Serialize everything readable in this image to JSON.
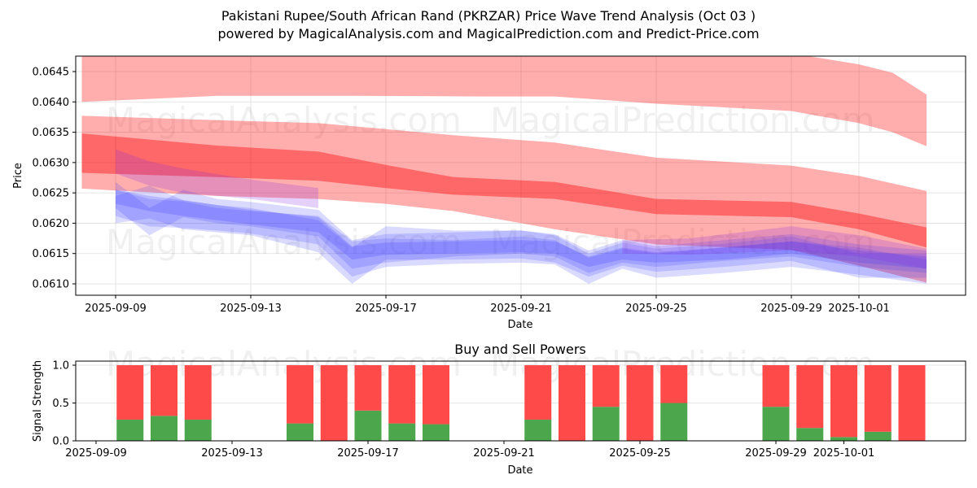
{
  "title_line1": "Pakistani Rupee/South African Rand (PKRZAR) Price Wave Trend Analysis (Oct 03 )",
  "title_line2": "powered by MagicalAnalysis.com and MagicalPrediction.com and Predict-Price.com",
  "watermarks": [
    "MagicalAnalysis.com",
    "MagicalPrediction.com"
  ],
  "colors": {
    "red_band": "#ff0000",
    "blue_band": "#3333ff",
    "purple_band": "#8a2be2",
    "buy": "#4ca64c",
    "sell": "#ff4a4a",
    "grid": "#dddddd"
  },
  "chart_data": [
    {
      "type": "area",
      "title": "",
      "xlabel": "Date",
      "ylabel": "Price",
      "ylim": [
        0.06082,
        0.06477
      ],
      "xlim": [
        "2025-09-07.2",
        "2025-10-04.1"
      ],
      "grid": true,
      "yticks": [
        "0.0610",
        "0.0615",
        "0.0620",
        "0.0625",
        "0.0630",
        "0.0635",
        "0.0640",
        "0.0645"
      ],
      "xticks": [
        "2025-09-09",
        "2025-09-13",
        "2025-09-17",
        "2025-09-21",
        "2025-09-25",
        "2025-09-29",
        "2025-10-01"
      ],
      "red_bands": [
        {
          "name": "upper-band",
          "opacity": 0.32,
          "x": [
            "2025-09-08",
            "2025-09-12",
            "2025-09-16",
            "2025-09-20",
            "2025-09-22",
            "2025-09-25",
            "2025-09-29",
            "2025-10-01",
            "2025-10-02",
            "2025-10-03"
          ],
          "lower": [
            0.064,
            0.0641,
            0.0641,
            0.06409,
            0.06409,
            0.06397,
            0.06385,
            0.06365,
            0.0635,
            0.06327
          ],
          "upper": [
            0.0648,
            0.0648,
            0.0648,
            0.0648,
            0.0648,
            0.0648,
            0.0648,
            0.06462,
            0.06448,
            0.06412
          ]
        },
        {
          "name": "mid-band",
          "opacity": 0.32,
          "x": [
            "2025-09-08",
            "2025-09-12",
            "2025-09-15",
            "2025-09-17",
            "2025-09-19",
            "2025-09-22",
            "2025-09-25",
            "2025-09-29",
            "2025-10-01",
            "2025-10-03"
          ],
          "lower": [
            0.06257,
            0.06245,
            0.0624,
            0.06232,
            0.0622,
            0.0619,
            0.06165,
            0.06156,
            0.0613,
            0.06102
          ],
          "upper": [
            0.06377,
            0.0637,
            0.06365,
            0.06355,
            0.06345,
            0.06333,
            0.06308,
            0.06295,
            0.06278,
            0.06253
          ]
        },
        {
          "name": "core-band",
          "opacity": 0.4,
          "x": [
            "2025-09-08",
            "2025-09-12",
            "2025-09-15",
            "2025-09-17",
            "2025-09-19",
            "2025-09-22",
            "2025-09-25",
            "2025-09-29",
            "2025-10-01",
            "2025-10-03"
          ],
          "lower": [
            0.06283,
            0.06276,
            0.0627,
            0.06258,
            0.06247,
            0.0624,
            0.06215,
            0.0621,
            0.0619,
            0.0616
          ],
          "upper": [
            0.06348,
            0.06328,
            0.06318,
            0.06296,
            0.06276,
            0.06268,
            0.0624,
            0.06235,
            0.06216,
            0.06193
          ]
        }
      ],
      "blue_bands": [
        {
          "name": "blue-wave",
          "opacity": 0.18,
          "x": [
            "2025-09-09",
            "2025-09-10",
            "2025-09-11",
            "2025-09-12",
            "2025-09-13",
            "2025-09-15",
            "2025-09-16",
            "2025-09-17",
            "2025-09-19",
            "2025-09-21",
            "2025-09-22",
            "2025-09-23",
            "2025-09-24",
            "2025-09-25",
            "2025-09-27",
            "2025-09-29",
            "2025-10-01",
            "2025-10-03"
          ],
          "lower": [
            0.06212,
            0.06195,
            0.06192,
            0.06188,
            0.06183,
            0.06165,
            0.06112,
            0.06128,
            0.06133,
            0.06135,
            0.06132,
            0.061,
            0.06125,
            0.0611,
            0.06118,
            0.06128,
            0.06115,
            0.061
          ],
          "upper": [
            0.06255,
            0.0624,
            0.06236,
            0.06225,
            0.0622,
            0.06212,
            0.0617,
            0.06175,
            0.06172,
            0.06178,
            0.06172,
            0.06143,
            0.06158,
            0.0615,
            0.0616,
            0.0617,
            0.0616,
            0.0614
          ]
        },
        {
          "name": "blue-wave",
          "opacity": 0.18,
          "x": [
            "2025-09-09",
            "2025-09-10",
            "2025-09-11",
            "2025-09-12",
            "2025-09-13",
            "2025-09-15",
            "2025-09-16",
            "2025-09-17",
            "2025-09-19",
            "2025-09-21",
            "2025-09-22",
            "2025-09-23",
            "2025-09-24",
            "2025-09-25",
            "2025-09-27",
            "2025-09-29",
            "2025-10-01",
            "2025-10-03"
          ],
          "lower": [
            0.062,
            0.06208,
            0.0619,
            0.06185,
            0.0618,
            0.06152,
            0.061,
            0.0614,
            0.0614,
            0.06142,
            0.06135,
            0.06112,
            0.0613,
            0.0612,
            0.06128,
            0.06138,
            0.0611,
            0.0611
          ],
          "upper": [
            0.06245,
            0.06262,
            0.06238,
            0.0623,
            0.06225,
            0.06205,
            0.0616,
            0.06195,
            0.06188,
            0.06188,
            0.0618,
            0.0615,
            0.06168,
            0.06158,
            0.06166,
            0.06178,
            0.0615,
            0.0615
          ]
        },
        {
          "name": "blue-wave",
          "opacity": 0.18,
          "x": [
            "2025-09-09",
            "2025-09-10",
            "2025-09-11",
            "2025-09-12",
            "2025-09-13",
            "2025-09-15",
            "2025-09-16",
            "2025-09-17",
            "2025-09-19",
            "2025-09-21",
            "2025-09-22",
            "2025-09-23",
            "2025-09-24",
            "2025-09-25",
            "2025-09-27",
            "2025-09-29",
            "2025-10-01",
            "2025-10-03"
          ],
          "lower": [
            0.06225,
            0.0618,
            0.0621,
            0.062,
            0.06195,
            0.06178,
            0.06125,
            0.06135,
            0.06145,
            0.0615,
            0.06145,
            0.06118,
            0.06135,
            0.06128,
            0.06138,
            0.06145,
            0.06128,
            0.06118
          ],
          "upper": [
            0.06268,
            0.06225,
            0.06255,
            0.0624,
            0.06235,
            0.06222,
            0.06172,
            0.06182,
            0.06185,
            0.06188,
            0.06182,
            0.06155,
            0.06172,
            0.06162,
            0.06172,
            0.06182,
            0.06165,
            0.06155
          ]
        },
        {
          "name": "blue-wave",
          "opacity": 0.2,
          "x": [
            "2025-09-09",
            "2025-09-10",
            "2025-09-11",
            "2025-09-12",
            "2025-09-13",
            "2025-09-15",
            "2025-09-16",
            "2025-09-17",
            "2025-09-19",
            "2025-09-21",
            "2025-09-22",
            "2025-09-23",
            "2025-09-24",
            "2025-09-25",
            "2025-09-27",
            "2025-09-29",
            "2025-10-01",
            "2025-10-03"
          ],
          "lower": [
            0.06232,
            0.0622,
            0.06212,
            0.06205,
            0.06198,
            0.06185,
            0.0614,
            0.06148,
            0.0615,
            0.06152,
            0.0615,
            0.06128,
            0.0614,
            0.06135,
            0.0614,
            0.0615,
            0.06135,
            0.06125
          ],
          "upper": [
            0.06255,
            0.06245,
            0.06238,
            0.0623,
            0.06222,
            0.0621,
            0.06162,
            0.06168,
            0.0617,
            0.06172,
            0.0617,
            0.06145,
            0.0616,
            0.06152,
            0.0616,
            0.0617,
            0.06155,
            0.06145
          ]
        }
      ],
      "purple_bands": [
        {
          "name": "purple-wave",
          "opacity": 0.22,
          "x": [
            "2025-09-09",
            "2025-09-10",
            "2025-09-11",
            "2025-09-13",
            "2025-09-15"
          ],
          "lower": [
            0.06282,
            0.06262,
            0.0625,
            0.0624,
            0.06225
          ],
          "upper": [
            0.06322,
            0.06302,
            0.0629,
            0.06272,
            0.06258
          ]
        },
        {
          "name": "purple-wave",
          "opacity": 0.22,
          "x": [
            "2025-09-24",
            "2025-09-26",
            "2025-09-29",
            "2025-10-01",
            "2025-10-03"
          ],
          "lower": [
            0.0615,
            0.06148,
            0.06155,
            0.06145,
            0.06125
          ],
          "upper": [
            0.06172,
            0.06175,
            0.06195,
            0.0618,
            0.06158
          ]
        }
      ]
    },
    {
      "type": "bar",
      "title": "Buy and Sell Powers",
      "xlabel": "Date",
      "ylabel": "Signal Strength",
      "ylim": [
        0,
        1.05
      ],
      "yticks": [
        "0.0",
        "0.5",
        "1.0"
      ],
      "xticks": [
        "2025-09-09",
        "2025-09-13",
        "2025-09-17",
        "2025-09-21",
        "2025-09-25",
        "2025-09-29",
        "2025-10-01"
      ],
      "categories": [
        "2025-09-10",
        "2025-09-11",
        "2025-09-12",
        "2025-09-15",
        "2025-09-16",
        "2025-09-17",
        "2025-09-18",
        "2025-09-19",
        "2025-09-22",
        "2025-09-23",
        "2025-09-24",
        "2025-09-25",
        "2025-09-26",
        "2025-09-29",
        "2025-09-30",
        "2025-10-01",
        "2025-10-02",
        "2025-10-03"
      ],
      "series": [
        {
          "name": "Buy",
          "values": [
            0.28,
            0.33,
            0.28,
            0.23,
            0.0,
            0.4,
            0.23,
            0.22,
            0.28,
            0.0,
            0.45,
            0.0,
            0.5,
            0.45,
            0.17,
            0.05,
            0.12,
            0.0
          ]
        },
        {
          "name": "Sell",
          "values": [
            0.72,
            0.67,
            0.72,
            0.77,
            1.0,
            0.6,
            0.77,
            0.78,
            0.72,
            1.0,
            0.55,
            1.0,
            0.5,
            0.55,
            0.83,
            0.95,
            0.88,
            1.0
          ]
        }
      ]
    }
  ]
}
